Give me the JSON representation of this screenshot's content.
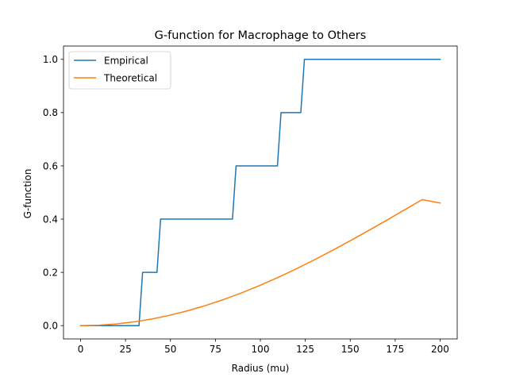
{
  "chart_data": {
    "type": "line",
    "title": "G-function for Macrophage to Others",
    "xlabel": "Radius (mu)",
    "ylabel": "G-function",
    "xlim": [
      -9.5,
      209.5
    ],
    "ylim": [
      -0.05,
      1.05
    ],
    "xticks": [
      0,
      25,
      50,
      75,
      100,
      125,
      150,
      175,
      200
    ],
    "yticks": [
      0.0,
      0.2,
      0.4,
      0.6,
      0.8,
      1.0
    ],
    "ytick_labels": [
      "0.0",
      "0.2",
      "0.4",
      "0.6",
      "0.8",
      "1.0"
    ],
    "grid": false,
    "legend_position": "upper-left",
    "series": [
      {
        "name": "Empirical",
        "color": "#1f77b4",
        "x": [
          0,
          32.5,
          34.5,
          42.5,
          44.5,
          84.5,
          86.5,
          109.5,
          111.5,
          122.5,
          124.5,
          200
        ],
        "y": [
          0,
          0,
          0.2,
          0.2,
          0.4,
          0.4,
          0.6,
          0.6,
          0.8,
          0.8,
          1.0,
          1.0
        ]
      },
      {
        "name": "Theoretical",
        "color": "#ff7f0e",
        "x": [
          0,
          10,
          20,
          30,
          40,
          50,
          60,
          70,
          80,
          90,
          100,
          110,
          120,
          130,
          140,
          150,
          160,
          170,
          180,
          190,
          200
        ],
        "y": [
          0,
          0.0016,
          0.0064,
          0.0143,
          0.0254,
          0.0396,
          0.0566,
          0.0765,
          0.0991,
          0.1243,
          0.1518,
          0.1816,
          0.2134,
          0.247,
          0.2822,
          0.3187,
          0.3563,
          0.3948,
          0.4338,
          0.4731,
          0.4604
        ]
      }
    ]
  }
}
